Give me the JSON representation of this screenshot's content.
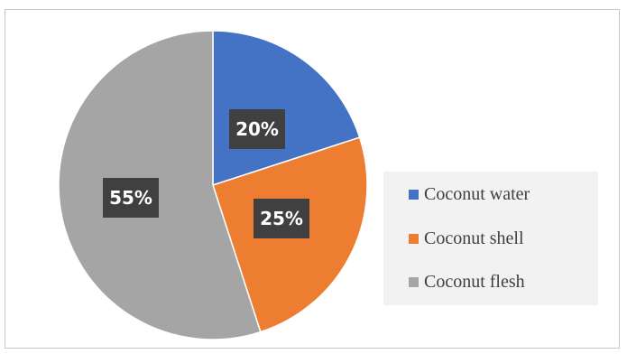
{
  "chart_data": {
    "type": "pie",
    "slices": [
      {
        "label": "Coconut water",
        "value": 20,
        "data_label": "20%",
        "color": "#4472c4"
      },
      {
        "label": "Coconut shell",
        "value": 25,
        "data_label": "25%",
        "color": "#ed7d31"
      },
      {
        "label": "Coconut flesh",
        "value": 55,
        "data_label": "55%",
        "color": "#a5a5a5"
      }
    ],
    "start": "12 o'clock",
    "direction": "clockwise",
    "legend_position": "right",
    "data_label_box_color": "#404040"
  }
}
